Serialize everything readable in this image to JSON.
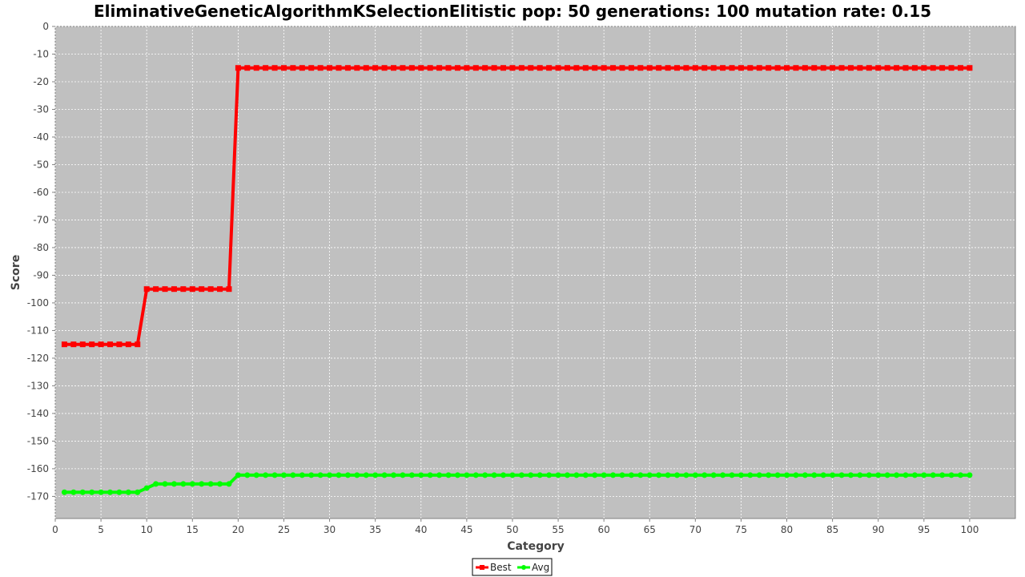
{
  "chart_data": {
    "type": "line",
    "title": "EliminativeGeneticAlgorithmKSelectionElitistic pop: 50 generations: 100 mutation rate: 0.15",
    "xlabel": "Category",
    "ylabel": "Score",
    "xlim": [
      0,
      105
    ],
    "ylim": [
      -178,
      0
    ],
    "x_ticks": [
      0,
      5,
      10,
      15,
      20,
      25,
      30,
      35,
      40,
      45,
      50,
      55,
      60,
      65,
      70,
      75,
      80,
      85,
      90,
      95,
      100
    ],
    "y_ticks": [
      0,
      -10,
      -20,
      -30,
      -40,
      -50,
      -60,
      -70,
      -80,
      -90,
      -100,
      -110,
      -120,
      -130,
      -140,
      -150,
      -160,
      -170
    ],
    "grid": true,
    "legend": "bottom-center",
    "segments": {
      "best": [
        {
          "from": 1,
          "to": 9,
          "value": -115
        },
        {
          "from": 10,
          "to": 19,
          "value": -95
        },
        {
          "from": 20,
          "to": 100,
          "value": -15
        }
      ],
      "avg": [
        {
          "from": 1,
          "to": 9,
          "value": -168.5
        },
        {
          "from": 10,
          "to": 10,
          "value": -167
        },
        {
          "from": 11,
          "to": 19,
          "value": -165.5
        },
        {
          "from": 20,
          "to": 100,
          "value": -162.3
        }
      ]
    },
    "series": [
      {
        "name": "Best",
        "color": "#ff0000",
        "marker": "square"
      },
      {
        "name": "Avg",
        "color": "#00ff00",
        "marker": "circle"
      }
    ]
  }
}
